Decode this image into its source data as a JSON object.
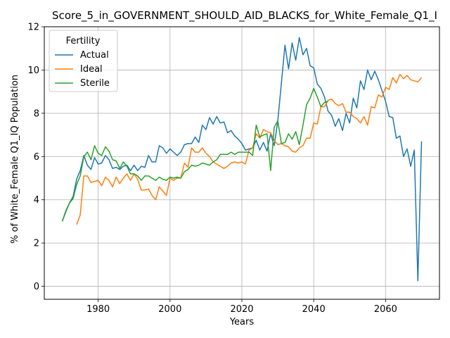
{
  "chart_data": {
    "type": "line",
    "title": "Score_5_in_GOVERNMENT_SHOULD_AID_BLACKS_for_White_Female_Q1_I",
    "xlabel": "Years",
    "ylabel": "% of White_Female Q1_IQ Population",
    "xlim": [
      1965,
      2075
    ],
    "ylim": [
      -0.6,
      12
    ],
    "xticks": [
      1980,
      2000,
      2020,
      2040,
      2060
    ],
    "yticks": [
      0,
      2,
      4,
      6,
      8,
      10,
      12
    ],
    "grid": true,
    "legend": {
      "title": "Fertility",
      "placement": "top-left"
    },
    "series": [
      {
        "name": "Actual",
        "color": "#1f77b4",
        "x": [
          1970,
          1971,
          1972,
          1973,
          1974,
          1975,
          1976,
          1977,
          1978,
          1979,
          1980,
          1981,
          1982,
          1983,
          1984,
          1985,
          1986,
          1987,
          1988,
          1989,
          1990,
          1991,
          1992,
          1993,
          1994,
          1995,
          1996,
          1997,
          1998,
          1999,
          2000,
          2001,
          2002,
          2003,
          2004,
          2005,
          2006,
          2007,
          2008,
          2009,
          2010,
          2011,
          2012,
          2013,
          2014,
          2015,
          2016,
          2017,
          2018,
          2019,
          2020,
          2021,
          2022,
          2023,
          2024,
          2025,
          2026,
          2027,
          2028,
          2029,
          2030,
          2031,
          2032,
          2033,
          2034,
          2035,
          2036,
          2037,
          2038,
          2039,
          2040,
          2041,
          2042,
          2043,
          2044,
          2045,
          2046,
          2047,
          2048,
          2049,
          2050,
          2051,
          2052,
          2053,
          2054,
          2055,
          2056,
          2057,
          2058,
          2059,
          2060,
          2061,
          2062,
          2063,
          2064,
          2065,
          2066,
          2067,
          2068,
          2069,
          2070
        ],
        "values": [
          3.0,
          3.45,
          3.85,
          4.15,
          4.95,
          5.35,
          6.05,
          5.6,
          5.4,
          5.95,
          5.65,
          5.7,
          6.05,
          5.85,
          5.45,
          5.5,
          5.4,
          5.55,
          5.6,
          5.35,
          5.6,
          5.35,
          5.55,
          5.5,
          6.05,
          5.75,
          5.75,
          6.5,
          6.4,
          6.15,
          6.35,
          6.2,
          6.05,
          6.2,
          6.55,
          6.6,
          6.6,
          6.9,
          6.65,
          7.45,
          7.25,
          7.8,
          7.5,
          7.85,
          7.55,
          7.6,
          7.1,
          7.2,
          6.95,
          6.8,
          6.6,
          6.3,
          6.35,
          6.4,
          6.75,
          6.3,
          6.65,
          6.25,
          7.05,
          6.5,
          7.65,
          9.4,
          11.15,
          10.05,
          11.25,
          10.45,
          11.5,
          10.7,
          11.0,
          10.2,
          10.1,
          9.35,
          9.15,
          8.75,
          8.1,
          7.9,
          7.4,
          7.75,
          7.2,
          8.0,
          7.55,
          8.7,
          8.25,
          9.5,
          9.1,
          10.0,
          9.55,
          9.95,
          9.55,
          9.05,
          8.55,
          7.85,
          7.8,
          6.85,
          6.95,
          6.0,
          6.35,
          5.55,
          6.3,
          0.25,
          6.7
        ]
      },
      {
        "name": "Ideal",
        "color": "#ff7f0e",
        "x": [
          1974,
          1975,
          1976,
          1977,
          1978,
          1979,
          1980,
          1981,
          1982,
          1983,
          1984,
          1985,
          1986,
          1987,
          1988,
          1989,
          1990,
          1991,
          1992,
          1993,
          1994,
          1995,
          1996,
          1997,
          1998,
          1999,
          2000,
          2001,
          2002,
          2003,
          2004,
          2005,
          2006,
          2007,
          2008,
          2009,
          2010,
          2011,
          2012,
          2013,
          2014,
          2015,
          2016,
          2017,
          2018,
          2019,
          2020,
          2021,
          2022,
          2023,
          2024,
          2025,
          2026,
          2027,
          2028,
          2029,
          2030,
          2031,
          2032,
          2033,
          2034,
          2035,
          2036,
          2037,
          2038,
          2039,
          2040,
          2041,
          2042,
          2043,
          2044,
          2045,
          2046,
          2047,
          2048,
          2049,
          2050,
          2051,
          2052,
          2053,
          2054,
          2055,
          2056,
          2057,
          2058,
          2059,
          2060,
          2061,
          2062,
          2063,
          2064,
          2065,
          2066,
          2067,
          2068,
          2069,
          2070
        ],
        "values": [
          2.85,
          3.3,
          5.1,
          5.1,
          4.8,
          4.85,
          4.9,
          4.65,
          5.05,
          4.9,
          4.6,
          5.05,
          4.75,
          5.0,
          5.2,
          4.9,
          5.2,
          4.95,
          4.45,
          4.45,
          4.5,
          4.2,
          4.0,
          4.6,
          4.4,
          4.2,
          5.0,
          4.9,
          5.0,
          5.0,
          5.7,
          5.5,
          6.4,
          6.2,
          6.2,
          6.4,
          6.15,
          6.0,
          5.75,
          5.65,
          5.55,
          5.45,
          5.55,
          5.7,
          5.75,
          5.7,
          5.75,
          5.65,
          6.3,
          6.4,
          7.05,
          6.85,
          7.25,
          7.15,
          7.1,
          6.75,
          6.55,
          6.6,
          6.5,
          6.45,
          6.25,
          6.2,
          6.4,
          6.5,
          6.85,
          6.85,
          7.55,
          7.5,
          8.3,
          8.3,
          8.6,
          8.65,
          8.45,
          8.35,
          8.45,
          8.05,
          8.05,
          7.85,
          7.75,
          7.55,
          7.85,
          7.45,
          8.3,
          8.25,
          8.85,
          8.75,
          9.2,
          9.1,
          9.65,
          9.4,
          9.8,
          9.6,
          9.75,
          9.55,
          9.5,
          9.45,
          9.65
        ]
      },
      {
        "name": "Sterile",
        "color": "#2ca02c",
        "x": [
          1970,
          1971,
          1972,
          1973,
          1974,
          1975,
          1976,
          1977,
          1978,
          1979,
          1980,
          1981,
          1982,
          1983,
          1984,
          1985,
          1986,
          1987,
          1988,
          1989,
          1990,
          1991,
          1992,
          1993,
          1994,
          1995,
          1996,
          1997,
          1998,
          1999,
          2000,
          2001,
          2002,
          2003,
          2004,
          2005,
          2006,
          2007,
          2008,
          2009,
          2010,
          2011,
          2012,
          2013,
          2014,
          2015,
          2016,
          2017,
          2018,
          2019,
          2020,
          2021,
          2022,
          2023,
          2024,
          2025,
          2026,
          2027,
          2028,
          2029,
          2030,
          2031,
          2032,
          2033,
          2034,
          2035,
          2036,
          2037,
          2038,
          2039,
          2040,
          2041,
          2042,
          2043,
          2044
        ],
        "values": [
          3.0,
          3.5,
          3.85,
          4.05,
          4.7,
          5.1,
          6.0,
          6.2,
          5.85,
          6.5,
          6.15,
          6.05,
          6.45,
          6.25,
          5.85,
          5.8,
          5.45,
          5.75,
          5.55,
          5.2,
          5.2,
          5.1,
          4.9,
          5.1,
          5.1,
          5.0,
          4.9,
          5.05,
          4.95,
          4.9,
          5.05,
          5.0,
          5.05,
          5.0,
          5.3,
          5.4,
          5.6,
          5.55,
          5.6,
          5.7,
          5.65,
          5.6,
          5.75,
          5.85,
          6.1,
          6.1,
          6.1,
          6.2,
          6.1,
          6.2,
          6.2,
          6.2,
          6.2,
          6.05,
          7.45,
          6.9,
          7.0,
          7.05,
          5.35,
          7.35,
          7.65,
          6.6,
          6.65,
          7.05,
          6.8,
          7.15,
          6.55,
          7.45,
          8.4,
          8.7,
          9.15,
          8.75,
          8.3,
          8.5,
          8.55
        ]
      }
    ]
  }
}
